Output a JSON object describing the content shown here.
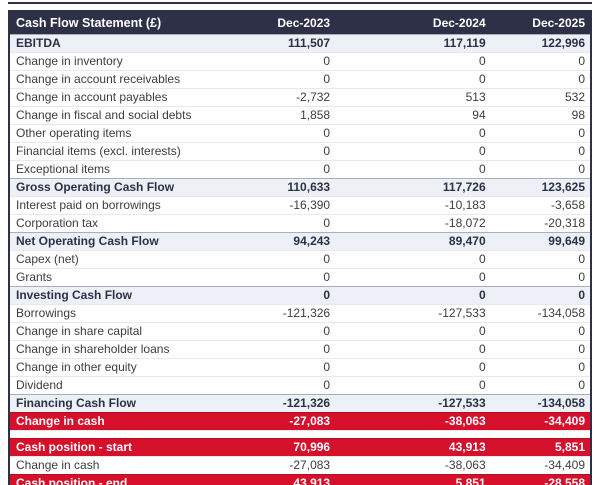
{
  "table": {
    "title": "Cash Flow Statement (£)",
    "columns": [
      "Dec-2023",
      "Dec-2024",
      "Dec-2025"
    ],
    "rows": [
      {
        "type": "section",
        "label": "EBITDA",
        "values": [
          "111,507",
          "117,119",
          "122,996"
        ]
      },
      {
        "type": "normal",
        "label": "Change in inventory",
        "values": [
          "0",
          "0",
          "0"
        ]
      },
      {
        "type": "normal",
        "label": "Change in account receivables",
        "values": [
          "0",
          "0",
          "0"
        ]
      },
      {
        "type": "normal",
        "label": "Change in account payables",
        "values": [
          "-2,732",
          "513",
          "532"
        ]
      },
      {
        "type": "normal",
        "label": "Change in fiscal and social debts",
        "values": [
          "1,858",
          "94",
          "98"
        ]
      },
      {
        "type": "normal",
        "label": "Other operating items",
        "values": [
          "0",
          "0",
          "0"
        ]
      },
      {
        "type": "normal",
        "label": "Financial items (excl. interests)",
        "values": [
          "0",
          "0",
          "0"
        ]
      },
      {
        "type": "normal",
        "label": "Exceptional items",
        "values": [
          "0",
          "0",
          "0"
        ]
      },
      {
        "type": "section",
        "label": "Gross Operating Cash Flow",
        "values": [
          "110,633",
          "117,726",
          "123,625"
        ]
      },
      {
        "type": "normal",
        "label": "Interest paid on borrowings",
        "values": [
          "-16,390",
          "-10,183",
          "-3,658"
        ]
      },
      {
        "type": "normal",
        "label": "Corporation tax",
        "values": [
          "0",
          "-18,072",
          "-20,318"
        ]
      },
      {
        "type": "section",
        "label": "Net Operating Cash Flow",
        "values": [
          "94,243",
          "89,470",
          "99,649"
        ]
      },
      {
        "type": "normal",
        "label": "Capex (net)",
        "values": [
          "0",
          "0",
          "0"
        ]
      },
      {
        "type": "normal",
        "label": "Grants",
        "values": [
          "0",
          "0",
          "0"
        ]
      },
      {
        "type": "section",
        "label": "Investing Cash Flow",
        "values": [
          "0",
          "0",
          "0"
        ]
      },
      {
        "type": "normal",
        "label": "Borrowings",
        "values": [
          "-121,326",
          "-127,533",
          "-134,058"
        ]
      },
      {
        "type": "normal",
        "label": "Change in share capital",
        "values": [
          "0",
          "0",
          "0"
        ]
      },
      {
        "type": "normal",
        "label": "Change in shareholder loans",
        "values": [
          "0",
          "0",
          "0"
        ]
      },
      {
        "type": "normal",
        "label": "Change in other equity",
        "values": [
          "0",
          "0",
          "0"
        ]
      },
      {
        "type": "normal",
        "label": "Dividend",
        "values": [
          "0",
          "0",
          "0"
        ]
      },
      {
        "type": "section",
        "label": "Financing Cash Flow",
        "values": [
          "-121,326",
          "-127,533",
          "-134,058"
        ]
      },
      {
        "type": "red",
        "label": "Change in cash",
        "values": [
          "-27,083",
          "-38,063",
          "-34,409"
        ]
      },
      {
        "type": "spacer",
        "label": "",
        "values": []
      },
      {
        "type": "red",
        "label": "Cash position - start",
        "values": [
          "70,996",
          "43,913",
          "5,851"
        ]
      },
      {
        "type": "normal",
        "label": "Change in cash",
        "values": [
          "-27,083",
          "-38,063",
          "-34,409"
        ]
      },
      {
        "type": "red",
        "label": "Cash position - end",
        "values": [
          "43,913",
          "5,851",
          "-28,558"
        ]
      }
    ]
  },
  "colors": {
    "header_bg": "#2e3047",
    "section_row_bg": "#edf0f6",
    "highlight_row_bg": "#d60f2b",
    "outer_border": "#2e3047"
  }
}
